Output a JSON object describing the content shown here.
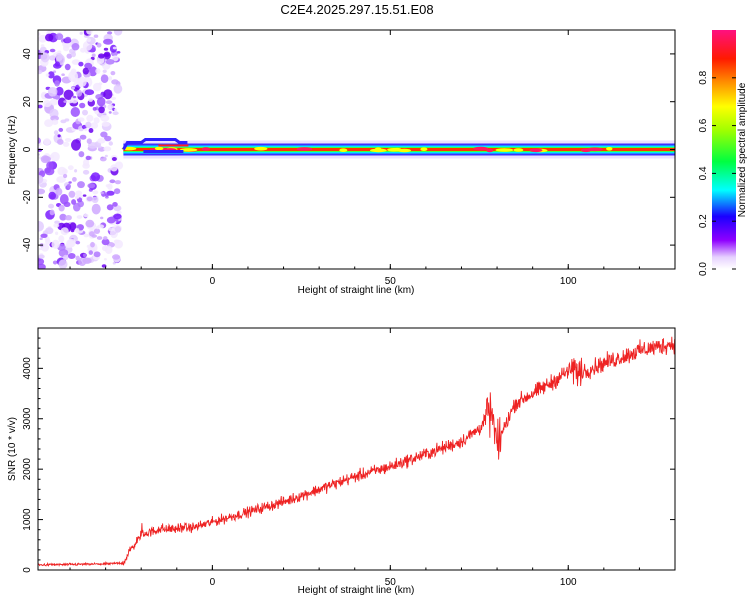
{
  "title": "C2E4.2025.297.15.51.E08",
  "chart_data": [
    {
      "type": "heatmap",
      "name": "spectrogram",
      "xlabel": "Height of straight line (km)",
      "ylabel": "Frequency (Hz)",
      "xlim": [
        -49,
        130
      ],
      "ylim": [
        -50,
        50
      ],
      "xticks": [
        0,
        50,
        100
      ],
      "yticks": [
        -40,
        -20,
        0,
        20,
        40
      ],
      "noise_region_x": [
        -49,
        -25
      ],
      "signal_start_x": -25,
      "signal_center_hz": 0,
      "colorbar": {
        "label": "Normalized spectral amplitude",
        "range": [
          0,
          1
        ],
        "ticks": [
          "0.0",
          "0.2",
          "0.4",
          "0.6",
          "0.8"
        ],
        "colors": [
          "#ffffff",
          "#8f00ff",
          "#0000ff",
          "#00ffff",
          "#00ff00",
          "#ffff00",
          "#ff7f00",
          "#ff0000",
          "#ff1493"
        ]
      }
    },
    {
      "type": "line",
      "name": "snr",
      "xlabel": "Height of straight line (km)",
      "ylabel": "SNR (10 * v/v)",
      "xlim": [
        -49,
        130
      ],
      "ylim": [
        0,
        4800
      ],
      "xticks": [
        0,
        50,
        100
      ],
      "yticks": [
        0,
        1000,
        2000,
        3000,
        4000
      ],
      "color": "#ee2222",
      "series": [
        {
          "name": "SNR",
          "x": [
            -49,
            -40,
            -30,
            -25,
            -23,
            -20,
            -15,
            -10,
            -5,
            0,
            10,
            20,
            30,
            40,
            50,
            60,
            70,
            75,
            78,
            80,
            85,
            90,
            95,
            100,
            105,
            110,
            120,
            130
          ],
          "values": [
            100,
            110,
            120,
            140,
            400,
            700,
            800,
            820,
            850,
            950,
            1150,
            1350,
            1600,
            1850,
            2050,
            2300,
            2550,
            2800,
            3150,
            2500,
            3300,
            3500,
            3700,
            3950,
            3950,
            4100,
            4350,
            4500
          ]
        }
      ]
    }
  ]
}
